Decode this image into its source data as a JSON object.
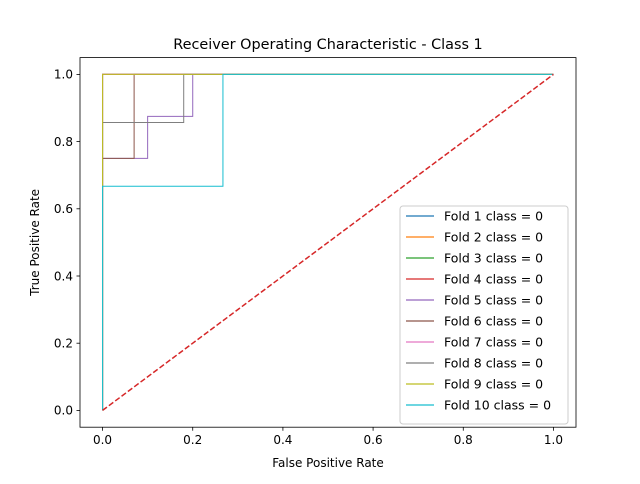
{
  "chart_data": {
    "type": "line",
    "title": "Receiver Operating Characteristic - Class 1",
    "xlabel": "False Positive Rate",
    "ylabel": "True Positive Rate",
    "xlim": [
      -0.05,
      1.05
    ],
    "ylim": [
      -0.05,
      1.05
    ],
    "xticks": [
      "0.0",
      "0.2",
      "0.4",
      "0.6",
      "0.8",
      "1.0"
    ],
    "yticks": [
      "0.0",
      "0.2",
      "0.4",
      "0.6",
      "0.8",
      "1.0"
    ],
    "grid": false,
    "legend_position": "lower-right",
    "diagonal": {
      "x": [
        0,
        1
      ],
      "y": [
        0,
        1
      ],
      "color": "#d62728",
      "style": "dashed"
    },
    "series": [
      {
        "name": "Fold 1 class = 0",
        "color": "#1f77b4",
        "x": [
          0,
          0,
          0,
          1
        ],
        "y": [
          0,
          0.75,
          1,
          1
        ]
      },
      {
        "name": "Fold 2 class = 0",
        "color": "#ff7f0e",
        "x": [
          0,
          0,
          0,
          1
        ],
        "y": [
          0,
          0.67,
          1,
          1
        ]
      },
      {
        "name": "Fold 3 class = 0",
        "color": "#2ca02c",
        "x": [
          0,
          0,
          1
        ],
        "y": [
          0,
          1,
          1
        ]
      },
      {
        "name": "Fold 4 class = 0",
        "color": "#d62728",
        "x": [
          0,
          0,
          1
        ],
        "y": [
          0,
          1,
          1
        ]
      },
      {
        "name": "Fold 5 class = 0",
        "color": "#9467bd",
        "x": [
          0,
          0,
          0.1,
          0.1,
          0.2,
          0.2,
          1
        ],
        "y": [
          0,
          0.75,
          0.75,
          0.875,
          0.875,
          1,
          1
        ]
      },
      {
        "name": "Fold 6 class = 0",
        "color": "#8c564b",
        "x": [
          0,
          0,
          0.07,
          0.07,
          1
        ],
        "y": [
          0,
          0.75,
          0.75,
          1,
          1
        ]
      },
      {
        "name": "Fold 7 class = 0",
        "color": "#e377c2",
        "x": [
          0,
          0,
          1
        ],
        "y": [
          0,
          1,
          1
        ]
      },
      {
        "name": "Fold 8 class = 0",
        "color": "#7f7f7f",
        "x": [
          0,
          0,
          0.18,
          0.18,
          1
        ],
        "y": [
          0,
          0.857,
          0.857,
          1,
          1
        ]
      },
      {
        "name": "Fold 9 class = 0",
        "color": "#bcbd22",
        "x": [
          0,
          0,
          1
        ],
        "y": [
          0,
          1,
          1
        ]
      },
      {
        "name": "Fold 10 class = 0",
        "color": "#17becf",
        "x": [
          0,
          0,
          0.267,
          0.267,
          1
        ],
        "y": [
          0,
          0.667,
          0.667,
          1,
          1
        ]
      }
    ]
  }
}
